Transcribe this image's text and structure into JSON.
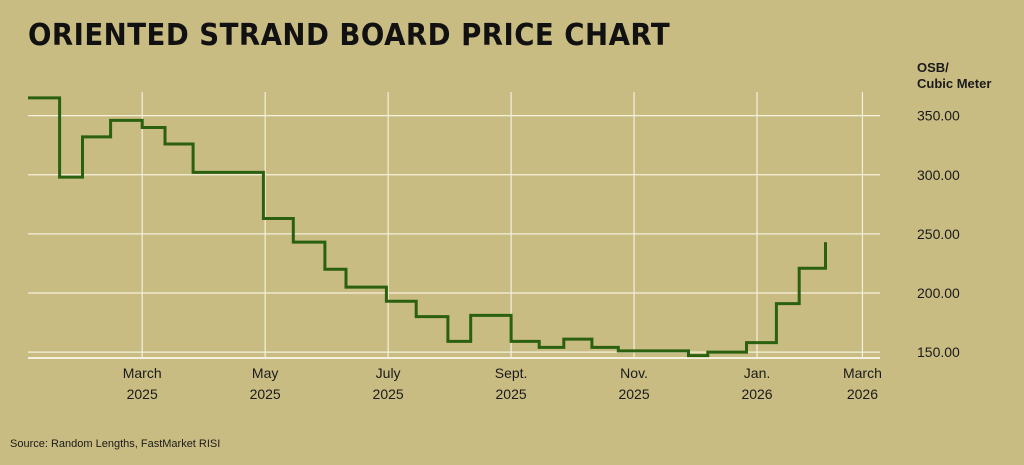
{
  "title": "ORIENTED STRAND BOARD PRICE CHART",
  "source": "Source: Random Lengths, FastMarket RISI",
  "chart_data": {
    "type": "line",
    "step": true,
    "ylabel_lines": [
      "OSB/",
      "Cubic Meter"
    ],
    "ylim": [
      145,
      370
    ],
    "yticks": [
      {
        "value": 150,
        "label": "150.00"
      },
      {
        "value": 200,
        "label": "200.00"
      },
      {
        "value": 250,
        "label": "250.00"
      },
      {
        "value": 300,
        "label": "300.00"
      },
      {
        "value": 350,
        "label": "350.00"
      }
    ],
    "xlim": [
      0,
      48.5
    ],
    "xticks": [
      {
        "value": 6.5,
        "month": "March",
        "year": "2025"
      },
      {
        "value": 13.5,
        "month": "May",
        "year": "2025"
      },
      {
        "value": 20.5,
        "month": "July",
        "year": "2025"
      },
      {
        "value": 27.5,
        "month": "Sept.",
        "year": "2025"
      },
      {
        "value": 34.5,
        "month": "Nov.",
        "year": "2025"
      },
      {
        "value": 41.5,
        "month": "Jan.",
        "year": "2026"
      },
      {
        "value": 47.5,
        "month": "March",
        "year": "2026"
      }
    ],
    "grid": true,
    "line_color": "#2a6010",
    "values": [
      [
        0,
        365
      ],
      [
        1.8,
        298
      ],
      [
        3.1,
        332
      ],
      [
        4.7,
        346
      ],
      [
        6.5,
        340
      ],
      [
        7.8,
        326
      ],
      [
        9.4,
        302
      ],
      [
        13.4,
        263
      ],
      [
        15.1,
        243
      ],
      [
        16.9,
        220
      ],
      [
        18.1,
        205
      ],
      [
        20.4,
        193
      ],
      [
        22.1,
        180
      ],
      [
        23.9,
        159
      ],
      [
        25.2,
        181
      ],
      [
        27.5,
        159
      ],
      [
        29.1,
        154
      ],
      [
        30.5,
        161
      ],
      [
        32.1,
        154
      ],
      [
        33.6,
        151
      ],
      [
        35.1,
        151
      ],
      [
        37.6,
        147
      ],
      [
        38.7,
        150
      ],
      [
        40.9,
        158
      ],
      [
        42.6,
        191
      ],
      [
        43.9,
        221
      ],
      [
        45.4,
        243
      ]
    ]
  }
}
